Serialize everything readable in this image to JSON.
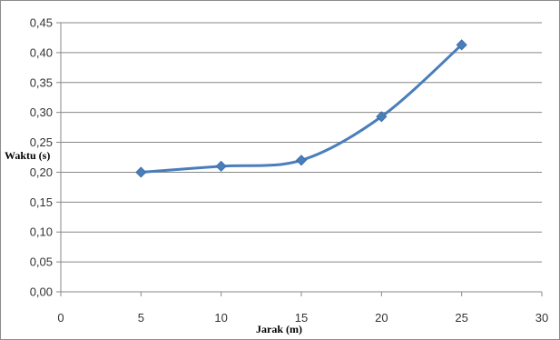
{
  "chart_data": {
    "type": "line",
    "xlabel": "Jarak (m)",
    "ylabel": "Waktu (s)",
    "xlim": [
      0,
      30
    ],
    "ylim": [
      0,
      0.45
    ],
    "x_ticks": [
      0,
      5,
      10,
      15,
      20,
      25,
      30
    ],
    "y_ticks": [
      0,
      0.05,
      0.1,
      0.15,
      0.2,
      0.25,
      0.3,
      0.35,
      0.4,
      0.45
    ],
    "x_tick_labels": [
      "0",
      "5",
      "10",
      "15",
      "20",
      "25",
      "30"
    ],
    "y_tick_labels": [
      "0,00",
      "0,05",
      "0,10",
      "0,15",
      "0,20",
      "0,25",
      "0,30",
      "0,35",
      "0,40",
      "0,45"
    ],
    "grid": "horizontal",
    "smooth": true,
    "marker": "diamond",
    "series_color": "#4a7ebb",
    "grid_color": "#878787",
    "series": [
      {
        "x": [
          5,
          10,
          15,
          20,
          25
        ],
        "y": [
          0.2,
          0.21,
          0.22,
          0.293,
          0.413
        ]
      }
    ]
  }
}
